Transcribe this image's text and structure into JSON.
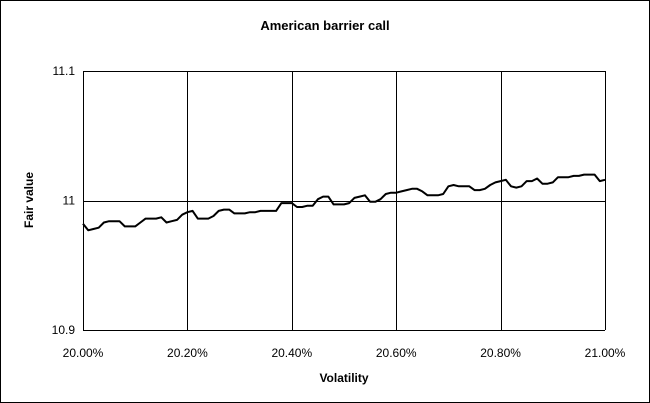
{
  "chart_data": {
    "type": "line",
    "title": "American barrier call",
    "xlabel": "Volatility",
    "ylabel": "Fair value",
    "xlim": [
      0.2,
      0.21
    ],
    "ylim": [
      10.9,
      11.1
    ],
    "x_ticks": [
      "20.00%",
      "20.20%",
      "20.40%",
      "20.60%",
      "20.80%",
      "21.00%"
    ],
    "y_ticks": [
      "10.9",
      "11",
      "11.1"
    ],
    "grid": true,
    "legend": "none",
    "line_color": "#000000",
    "series": [
      {
        "x": [
          0.2,
          0.2001,
          0.2002,
          0.2003,
          0.2004,
          0.2005,
          0.2006,
          0.2007,
          0.2008,
          0.2009,
          0.201,
          0.2011,
          0.2012,
          0.2013,
          0.2014,
          0.2015,
          0.2016,
          0.2017,
          0.2018,
          0.2019,
          0.202,
          0.2021,
          0.2022,
          0.2023,
          0.2024,
          0.2025,
          0.2026,
          0.2027,
          0.2028,
          0.2029,
          0.203,
          0.2031,
          0.2032,
          0.2033,
          0.2034,
          0.2035,
          0.2036,
          0.2037,
          0.2038,
          0.2039,
          0.204,
          0.2041,
          0.2042,
          0.2043,
          0.2044,
          0.2045,
          0.2046,
          0.2047,
          0.2048,
          0.2049,
          0.205,
          0.2051,
          0.2052,
          0.2053,
          0.2054,
          0.2055,
          0.2056,
          0.2057,
          0.2058,
          0.2059,
          0.206,
          0.2061,
          0.2062,
          0.2063,
          0.2064,
          0.2065,
          0.2066,
          0.2067,
          0.2068,
          0.2069,
          0.207,
          0.2071,
          0.2072,
          0.2073,
          0.2074,
          0.2075,
          0.2076,
          0.2077,
          0.2078,
          0.2079,
          0.208,
          0.2081,
          0.2082,
          0.2083,
          0.2084,
          0.2085,
          0.2086,
          0.2087,
          0.2088,
          0.2089,
          0.209,
          0.2091,
          0.2092,
          0.2093,
          0.2094,
          0.2095,
          0.2096,
          0.2097,
          0.2098,
          0.2099,
          0.21
        ],
        "y": [
          10.982,
          10.977,
          10.978,
          10.979,
          10.983,
          10.984,
          10.984,
          10.984,
          10.98,
          10.98,
          10.98,
          10.983,
          10.986,
          10.986,
          10.986,
          10.987,
          10.983,
          10.984,
          10.985,
          10.989,
          10.991,
          10.992,
          10.986,
          10.986,
          10.986,
          10.988,
          10.992,
          10.993,
          10.993,
          10.99,
          10.99,
          10.99,
          10.991,
          10.991,
          10.992,
          10.992,
          10.992,
          10.992,
          10.998,
          10.998,
          10.998,
          10.995,
          10.995,
          10.996,
          10.996,
          11.001,
          11.003,
          11.003,
          10.997,
          10.997,
          10.997,
          10.998,
          11.002,
          11.003,
          11.004,
          10.999,
          10.999,
          11.001,
          11.005,
          11.006,
          11.006,
          11.007,
          11.008,
          11.009,
          11.009,
          11.007,
          11.004,
          11.004,
          11.004,
          11.005,
          11.011,
          11.012,
          11.011,
          11.011,
          11.011,
          11.008,
          11.008,
          11.009,
          11.012,
          11.014,
          11.015,
          11.016,
          11.011,
          11.01,
          11.011,
          11.015,
          11.015,
          11.017,
          11.013,
          11.013,
          11.014,
          11.018,
          11.018,
          11.018,
          11.019,
          11.019,
          11.02,
          11.02,
          11.02,
          11.015,
          11.016
        ]
      }
    ]
  }
}
